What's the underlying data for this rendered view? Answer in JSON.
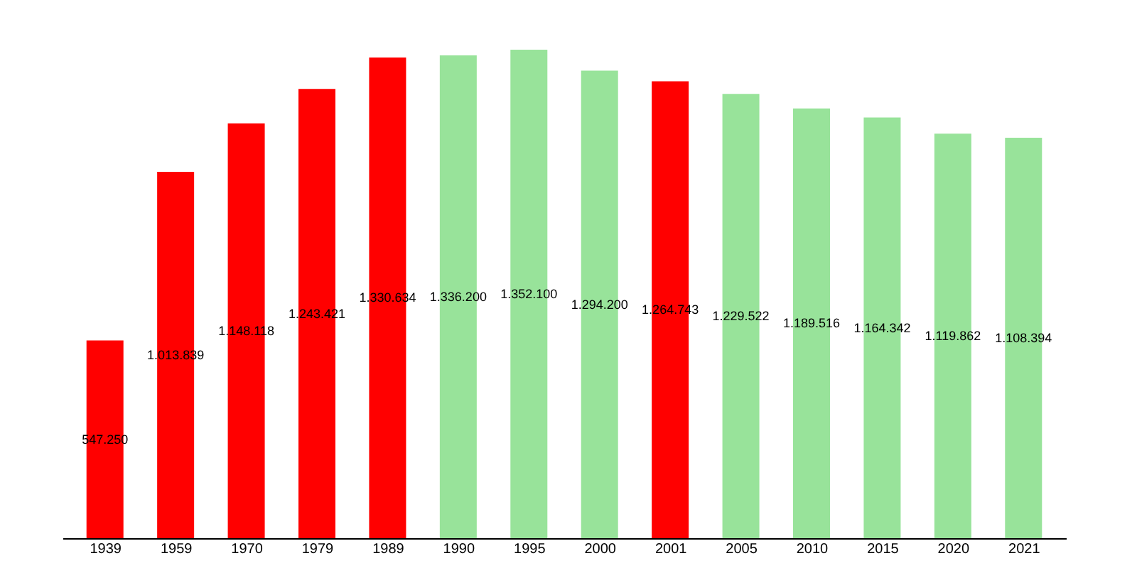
{
  "chart_data": {
    "type": "bar",
    "categories": [
      "1939",
      "1959",
      "1970",
      "1979",
      "1989",
      "1990",
      "1995",
      "2000",
      "2001",
      "2005",
      "2010",
      "2015",
      "2020",
      "2021"
    ],
    "values": [
      547250,
      1013839,
      1148118,
      1243421,
      1330634,
      1336200,
      1352100,
      1294200,
      1264743,
      1229522,
      1189516,
      1164342,
      1119862,
      1108394
    ],
    "value_labels": [
      "547.250",
      "1.013.839",
      "1.148.118",
      "1.243.421",
      "1.330.634",
      "1.336.200",
      "1.352.100",
      "1.294.200",
      "1.264.743",
      "1.229.522",
      "1.189.516",
      "1.164.342",
      "1.119.862",
      "1.108.394"
    ],
    "colors": [
      "#ff0000",
      "#ff0000",
      "#ff0000",
      "#ff0000",
      "#ff0000",
      "#98e39a",
      "#98e39a",
      "#98e39a",
      "#ff0000",
      "#98e39a",
      "#98e39a",
      "#98e39a",
      "#98e39a",
      "#98e39a"
    ],
    "grid": false
  }
}
